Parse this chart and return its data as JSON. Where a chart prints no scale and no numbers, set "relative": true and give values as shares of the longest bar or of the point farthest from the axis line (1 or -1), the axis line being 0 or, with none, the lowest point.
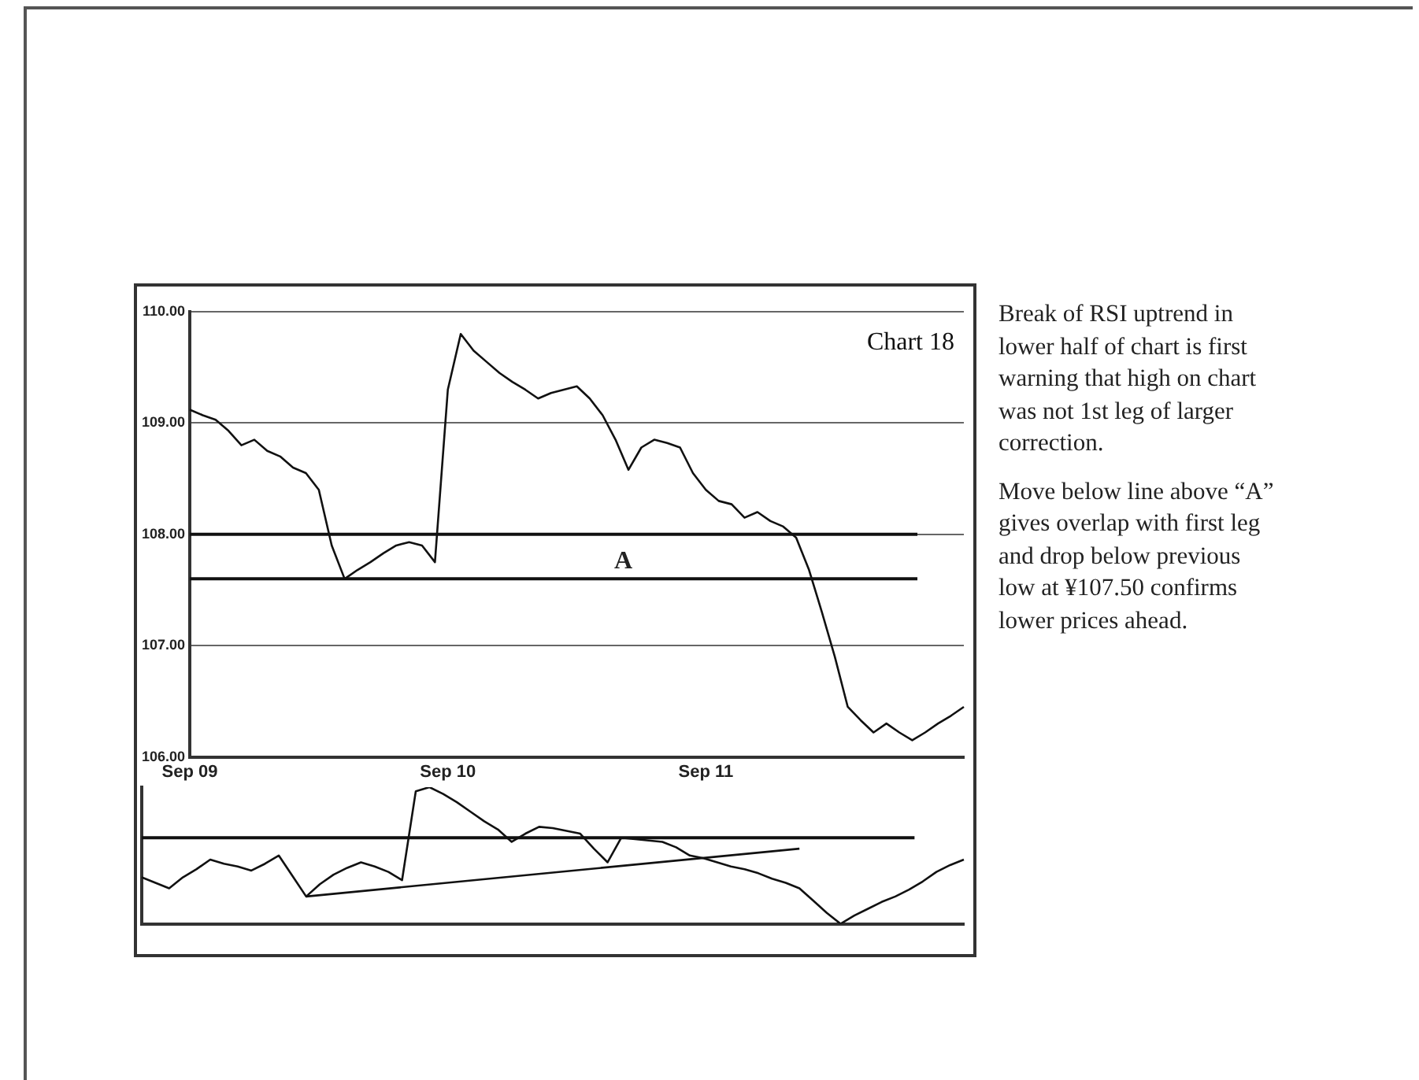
{
  "chart_data": [
    {
      "type": "line",
      "title": "Chart 18",
      "categories": [
        "Sep 09",
        null,
        null,
        null,
        null,
        null,
        null,
        null,
        null,
        null,
        null,
        null,
        null,
        null,
        null,
        null,
        null,
        null,
        null,
        null,
        "Sep 10",
        null,
        null,
        null,
        null,
        null,
        null,
        null,
        null,
        null,
        null,
        null,
        null,
        null,
        null,
        null,
        null,
        null,
        null,
        null,
        "Sep 11",
        null,
        null,
        null,
        null,
        null,
        null,
        null,
        null,
        null,
        null,
        null,
        null,
        null,
        null,
        null,
        null,
        null,
        null,
        null,
        null
      ],
      "series": [
        {
          "color": "#111111",
          "values": [
            109.12,
            109.07,
            109.03,
            108.93,
            108.8,
            108.85,
            108.75,
            108.7,
            108.6,
            108.55,
            108.4,
            107.9,
            107.6,
            107.68,
            107.75,
            107.83,
            107.9,
            107.93,
            107.9,
            107.75,
            109.3,
            109.8,
            109.65,
            109.55,
            109.45,
            109.37,
            109.3,
            109.22,
            109.27,
            109.3,
            109.33,
            109.22,
            109.07,
            108.85,
            108.58,
            108.78,
            108.85,
            108.82,
            108.78,
            108.55,
            108.4,
            108.3,
            108.27,
            108.15,
            108.2,
            108.12,
            108.07,
            107.97,
            107.68,
            107.3,
            106.9,
            106.45,
            106.33,
            106.22,
            106.3,
            106.22,
            106.15,
            106.22,
            106.3,
            106.37,
            106.45
          ]
        }
      ],
      "ylim": [
        106,
        110
      ],
      "yticks": [
        {
          "value": 106,
          "label": "106.00"
        },
        {
          "value": 107,
          "label": "107.00"
        },
        {
          "value": 108,
          "label": "108.00"
        },
        {
          "value": 109,
          "label": "109.00"
        },
        {
          "value": 110,
          "label": "110.00"
        }
      ],
      "grid": "y",
      "legend": false,
      "marker": "none",
      "line_style": "solid",
      "ref_lines": [
        {
          "axis": "y",
          "value": 108.0,
          "color": "#111111"
        },
        {
          "axis": "y",
          "value": 107.6,
          "label": "A",
          "color": "#111111"
        }
      ],
      "annotations": [
        "Break of RSI uptrend in lower half of chart is first warning that high on chart was not 1st leg of larger correction.",
        "Move below line above “A” gives overlap with first leg and drop below previous low at ¥107.50 confirms lower prices ahead."
      ]
    },
    {
      "type": "line",
      "relative": true,
      "categories": [
        null,
        null,
        null,
        null,
        null,
        null,
        null,
        null,
        null,
        null,
        null,
        null,
        null,
        null,
        null,
        null,
        null,
        null,
        null,
        null,
        null,
        null,
        null,
        null,
        null,
        null,
        null,
        null,
        null,
        null,
        null,
        null,
        null,
        null,
        null,
        null,
        null,
        null,
        null,
        null,
        null,
        null,
        null,
        null,
        null,
        null,
        null,
        null,
        null,
        null,
        null,
        null,
        null,
        null,
        null,
        null,
        null,
        null,
        null,
        null,
        null
      ],
      "series": [
        {
          "color": "#111111",
          "values": [
            0.34,
            0.3,
            0.26,
            0.34,
            0.4,
            0.47,
            0.44,
            0.42,
            0.39,
            0.44,
            0.5,
            0.35,
            0.2,
            0.29,
            0.36,
            0.41,
            0.45,
            0.42,
            0.38,
            0.32,
            0.97,
            1,
            0.95,
            0.89,
            0.82,
            0.75,
            0.69,
            0.6,
            0.66,
            0.71,
            0.7,
            0.68,
            0.66,
            0.55,
            0.45,
            0.63,
            0.62,
            0.61,
            0.6,
            0.56,
            0.5,
            0.48,
            0.45,
            0.42,
            0.4,
            0.37,
            0.33,
            0.3,
            0.26,
            0.17,
            0.08,
            0,
            0.06,
            0.11,
            0.16,
            0.2,
            0.25,
            0.31,
            0.38,
            0.43,
            0.47
          ]
        },
        {
          "type": "line",
          "color": "#111111",
          "values": [
            null,
            null,
            null,
            null,
            null,
            null,
            null,
            null,
            null,
            null,
            null,
            null,
            0.2,
            null,
            null,
            null,
            null,
            null,
            null,
            null,
            null,
            null,
            null,
            null,
            null,
            null,
            null,
            null,
            null,
            null,
            null,
            null,
            null,
            null,
            null,
            null,
            null,
            null,
            null,
            null,
            null,
            null,
            null,
            null,
            null,
            null,
            null,
            null,
            0.55,
            null,
            null,
            null,
            null,
            null,
            null,
            null,
            null,
            null,
            null,
            null,
            null
          ]
        }
      ],
      "grid": false,
      "legend": false,
      "marker": "none",
      "line_style": "solid",
      "ref_lines": [
        {
          "axis": "y",
          "value": 0.63,
          "color": "#111111"
        }
      ]
    }
  ]
}
